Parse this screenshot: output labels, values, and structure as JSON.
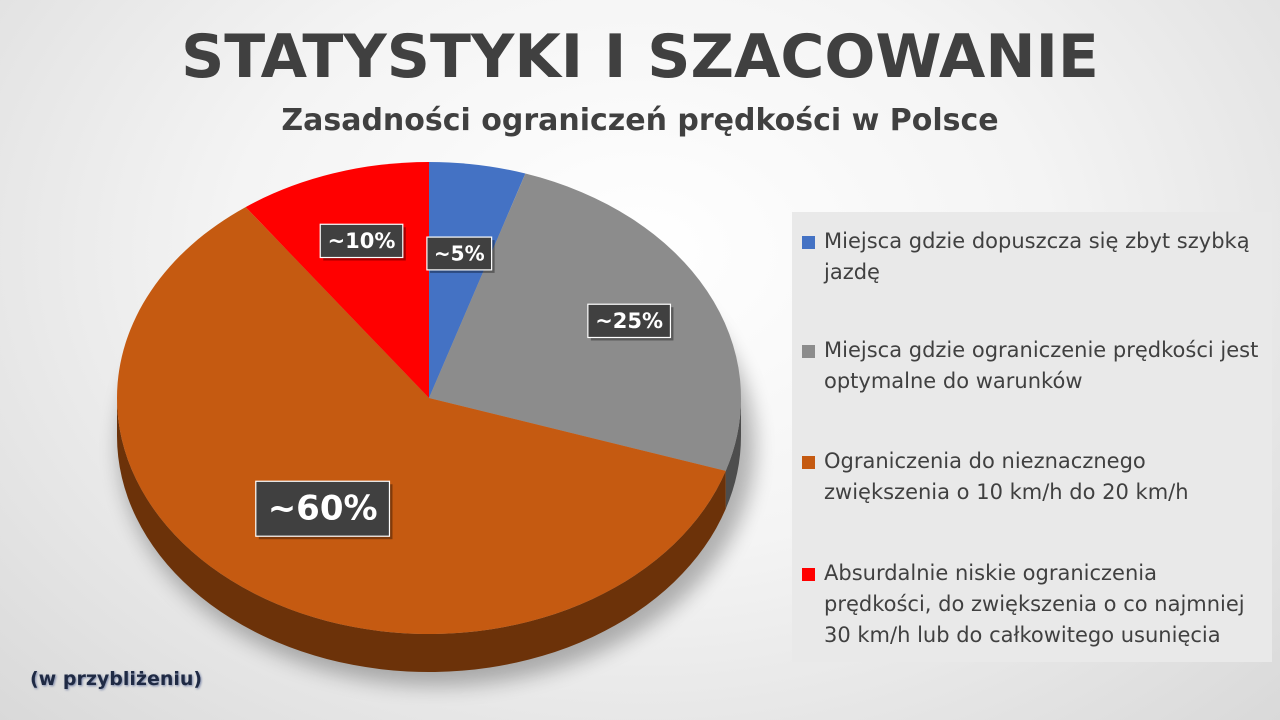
{
  "title": "STATYSTYKI I SZACOWANIE",
  "subtitle": "Zasadności ograniczeń prędkości w Polsce",
  "note": "(w przybliżeniu)",
  "chart_data": {
    "type": "pie",
    "title": "STATYSTYKI I SZACOWANIE",
    "subtitle": "Zasadności ograniczeń prędkości w Polsce",
    "legend_position": "right",
    "slices": [
      {
        "label": "Miejsca gdzie dopuszcza się zbyt szybką jazdę",
        "value": 5,
        "data_label": "~5%",
        "color": "#4472c4"
      },
      {
        "label": "Miejsca gdzie ograniczenie prędkości jest optymalne do warunków",
        "value": 25,
        "data_label": "~25%",
        "color": "#8c8c8c"
      },
      {
        "label": "Ograniczenia do nieznacznego zwiększenia o 10 km/h do 20 km/h",
        "value": 60,
        "data_label": "~60%",
        "color": "#c55a11"
      },
      {
        "label": "Absurdalnie niskie ograniczenia prędkości, do zwiększenia o co najmniej 30 km/h lub do całkowitego usunięcia",
        "value": 10,
        "data_label": "~10%",
        "color": "#ff0000"
      }
    ]
  }
}
